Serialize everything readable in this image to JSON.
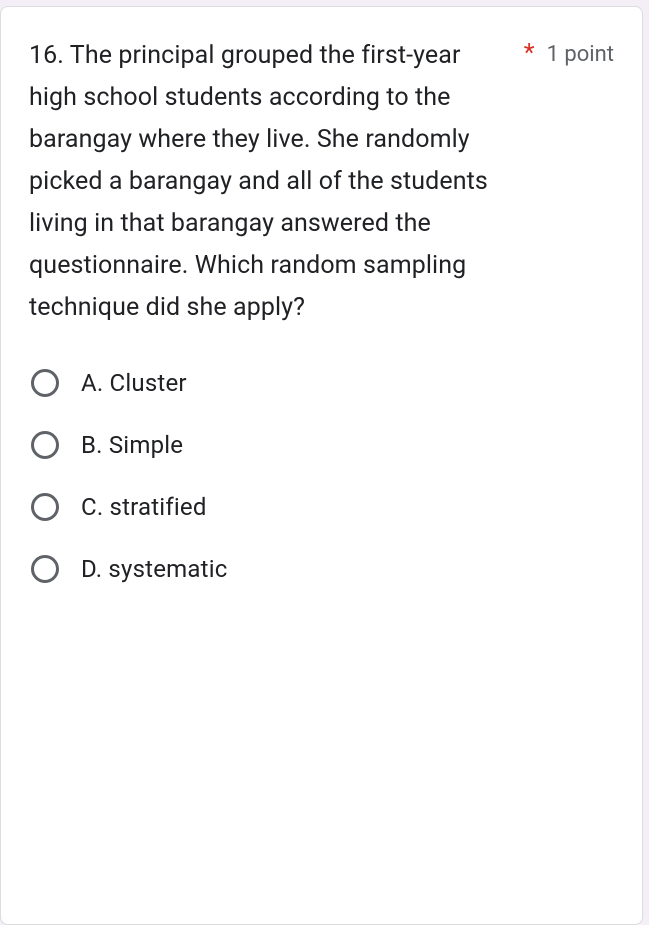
{
  "question": {
    "number": "16.",
    "text": "16. The principal grouped the first-year high school students according to the barangay where they live. She randomly picked a barangay and all of the students living in that barangay answered the questionnaire. Which random sampling technique did she apply?",
    "required_marker": "*",
    "points_label": "1 point",
    "text_color": "#202124",
    "required_color": "#d93025",
    "points_color": "#5f6368",
    "font_size_question": 25,
    "font_size_points": 22
  },
  "options": [
    {
      "label": "A. Cluster",
      "selected": false
    },
    {
      "label": "B. Simple",
      "selected": false
    },
    {
      "label": "C. stratified",
      "selected": false
    },
    {
      "label": "D. systematic",
      "selected": false
    }
  ],
  "style": {
    "card_bg": "#ffffff",
    "card_border": "#dadce0",
    "page_bg": "#f4eef6",
    "radio_border": "#5f6368",
    "option_font_size": 24,
    "option_gap": 34
  }
}
